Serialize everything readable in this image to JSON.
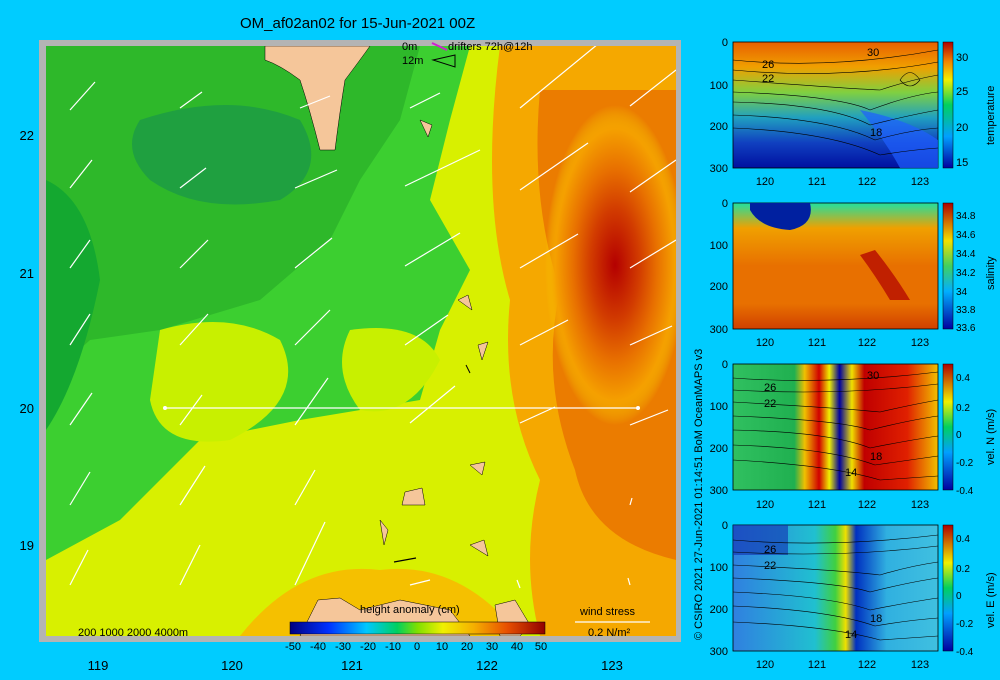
{
  "title": "OM_af02an02 for 15-Jun-2021 00Z",
  "credit": "© CSIRO 2021   27-Jun-2021 01:14:51 BoM OceanMAPS v3",
  "colors": {
    "background": "#00ccff",
    "frame": "#b4b4b4",
    "land": "#f5c69a"
  },
  "map": {
    "x_ticks": [
      "119",
      "120",
      "121",
      "122",
      "123"
    ],
    "y_ticks": [
      "22",
      "21",
      "20",
      "19"
    ],
    "legend_top": {
      "line1": "0m",
      "line1b": "drifters 72h@12h",
      "line2": "12m"
    },
    "depth_legend": "200  1000  2000  4000m",
    "colorbar": {
      "title": "height anomaly (cm)",
      "ticks": [
        "-50",
        "-40",
        "-30",
        "-20",
        "-10",
        "0",
        "10",
        "20",
        "30",
        "40",
        "50"
      ]
    },
    "wind": {
      "label": "wind stress",
      "scale": "0.2 N/m²"
    },
    "contour_labels": []
  },
  "chart_data": [
    {
      "type": "heatmap",
      "title": "OM_af02an02 for 15-Jun-2021 00Z",
      "colorbar_label": "height anomaly (cm)",
      "xlim": [
        118.5,
        123.5
      ],
      "ylim": [
        18.3,
        22.7
      ],
      "x_ticks": [
        119,
        120,
        121,
        122,
        123
      ],
      "y_ticks": [
        22,
        21,
        20,
        19
      ],
      "section": {
        "lat": 20.0,
        "lon_start": 119.5,
        "lon_end": 123.0
      },
      "field_centres": [
        {
          "lon": 119.8,
          "lat": 22.0,
          "height_anomaly": -15
        },
        {
          "lon": 122.8,
          "lat": 21.1,
          "height_anomaly": 45
        },
        {
          "lon": 121.5,
          "lat": 18.4,
          "height_anomaly": 20
        }
      ]
    },
    {
      "type": "heatmap",
      "colorbar_label": "temperature",
      "xlim": [
        119.5,
        123.3
      ],
      "ylim": [
        300,
        0
      ],
      "x_ticks": [
        "120",
        "121",
        "122",
        "123"
      ],
      "y_ticks": [
        "0",
        "100",
        "200",
        "300"
      ],
      "colorbar_ticks": [
        "30",
        "25",
        "20",
        "15"
      ],
      "contour_labels": [
        "26",
        "22",
        "30",
        "18"
      ]
    },
    {
      "type": "heatmap",
      "colorbar_label": "salinity",
      "xlim": [
        119.5,
        123.3
      ],
      "ylim": [
        300,
        0
      ],
      "x_ticks": [
        "120",
        "121",
        "122",
        "123"
      ],
      "y_ticks": [
        "0",
        "100",
        "200",
        "300"
      ],
      "colorbar_ticks": [
        "34.8",
        "34.6",
        "34.4",
        "34.2",
        "34",
        "33.8",
        "33.6"
      ]
    },
    {
      "type": "heatmap",
      "colorbar_label": "vel. N (m/s)",
      "xlim": [
        119.5,
        123.3
      ],
      "ylim": [
        300,
        0
      ],
      "x_ticks": [
        "120",
        "121",
        "122",
        "123"
      ],
      "y_ticks": [
        "0",
        "100",
        "200",
        "300"
      ],
      "colorbar_ticks": [
        "0.4",
        "0.2",
        "0",
        "-0.2",
        "-0.4"
      ],
      "contour_labels": [
        "26",
        "22",
        "30",
        "18",
        "14"
      ]
    },
    {
      "type": "heatmap",
      "colorbar_label": "vel. E (m/s)",
      "xlim": [
        119.5,
        123.3
      ],
      "ylim": [
        300,
        0
      ],
      "x_ticks": [
        "120",
        "121",
        "122",
        "123"
      ],
      "y_ticks": [
        "0",
        "100",
        "200",
        "300"
      ],
      "colorbar_ticks": [
        "0.4",
        "0.2",
        "0",
        "-0.2",
        "-0.4"
      ],
      "contour_labels": [
        "26",
        "22",
        "18",
        "14"
      ]
    }
  ]
}
